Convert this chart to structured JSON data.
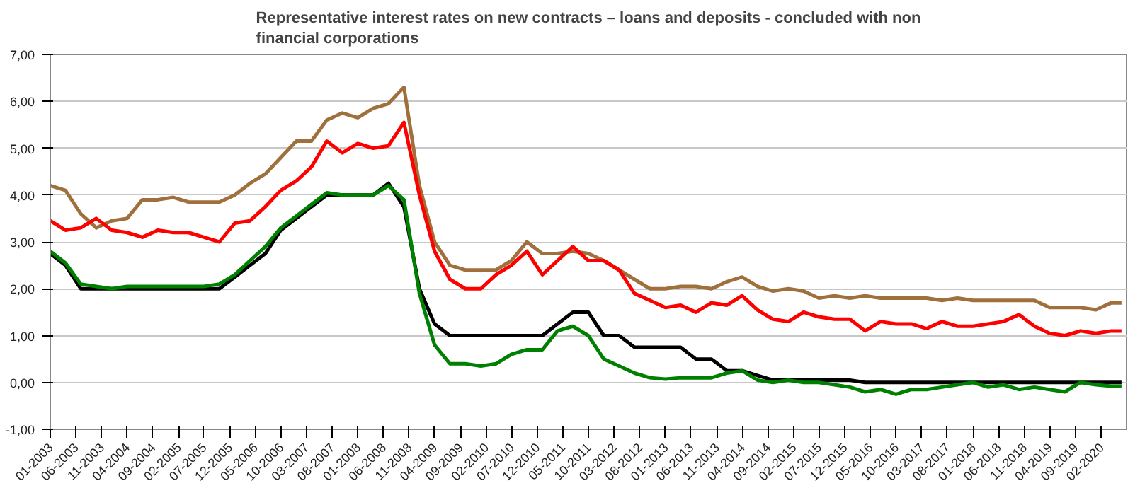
{
  "chart_data": {
    "type": "line",
    "title": "Representative interest rates on new contracts – loans and deposits - concluded with non financial corporations",
    "x": [
      "2003-01",
      "2003-04",
      "2003-07",
      "2003-10",
      "2004-01",
      "2004-04",
      "2004-07",
      "2004-10",
      "2005-01",
      "2005-04",
      "2005-07",
      "2005-10",
      "2006-01",
      "2006-04",
      "2006-07",
      "2006-10",
      "2007-01",
      "2007-04",
      "2007-07",
      "2007-10",
      "2008-01",
      "2008-04",
      "2008-07",
      "2008-10",
      "2009-01",
      "2009-04",
      "2009-07",
      "2009-10",
      "2010-01",
      "2010-04",
      "2010-07",
      "2010-10",
      "2011-01",
      "2011-04",
      "2011-07",
      "2011-10",
      "2012-01",
      "2012-04",
      "2012-07",
      "2012-10",
      "2013-01",
      "2013-04",
      "2013-07",
      "2013-10",
      "2014-01",
      "2014-04",
      "2014-07",
      "2014-10",
      "2015-01",
      "2015-04",
      "2015-07",
      "2015-10",
      "2016-01",
      "2016-04",
      "2016-07",
      "2016-10",
      "2017-01",
      "2017-04",
      "2017-07",
      "2017-10",
      "2018-01",
      "2018-04",
      "2018-07",
      "2018-10",
      "2019-01",
      "2019-04",
      "2019-07",
      "2019-10",
      "2020-01",
      "2020-04",
      "2020-06"
    ],
    "series": [
      {
        "color": "#a0703c",
        "values": [
          4.2,
          4.1,
          3.6,
          3.3,
          3.45,
          3.5,
          3.9,
          3.9,
          3.95,
          3.85,
          3.85,
          3.85,
          4.0,
          4.25,
          4.45,
          4.8,
          5.15,
          5.15,
          5.6,
          5.75,
          5.65,
          5.85,
          5.95,
          6.3,
          4.2,
          3.0,
          2.5,
          2.4,
          2.4,
          2.4,
          2.6,
          3.0,
          2.75,
          2.75,
          2.8,
          2.75,
          2.6,
          2.4,
          2.2,
          2.0,
          2.0,
          2.05,
          2.05,
          2.0,
          2.15,
          2.25,
          2.05,
          1.95,
          2.0,
          1.95,
          1.8,
          1.85,
          1.8,
          1.85,
          1.8,
          1.8,
          1.8,
          1.8,
          1.75,
          1.8,
          1.75,
          1.75,
          1.75,
          1.75,
          1.75,
          1.6,
          1.6,
          1.6,
          1.55,
          1.7,
          1.7
        ]
      },
      {
        "color": "#ff0000",
        "values": [
          3.45,
          3.25,
          3.3,
          3.5,
          3.25,
          3.2,
          3.1,
          3.25,
          3.2,
          3.2,
          3.1,
          3.0,
          3.4,
          3.45,
          3.75,
          4.1,
          4.3,
          4.6,
          5.15,
          4.9,
          5.1,
          5.0,
          5.05,
          5.55,
          4.0,
          2.8,
          2.2,
          2.0,
          2.0,
          2.3,
          2.5,
          2.8,
          2.3,
          2.6,
          2.9,
          2.6,
          2.6,
          2.4,
          1.9,
          1.75,
          1.6,
          1.65,
          1.5,
          1.7,
          1.65,
          1.85,
          1.55,
          1.35,
          1.3,
          1.5,
          1.4,
          1.35,
          1.35,
          1.1,
          1.3,
          1.25,
          1.25,
          1.15,
          1.3,
          1.2,
          1.2,
          1.25,
          1.3,
          1.45,
          1.2,
          1.05,
          1.0,
          1.1,
          1.05,
          1.1,
          1.1
        ]
      },
      {
        "color": "#000000",
        "values": [
          2.75,
          2.5,
          2.0,
          2.0,
          2.0,
          2.0,
          2.0,
          2.0,
          2.0,
          2.0,
          2.0,
          2.0,
          2.25,
          2.5,
          2.75,
          3.25,
          3.5,
          3.75,
          4.0,
          4.0,
          4.0,
          4.0,
          4.25,
          3.75,
          2.0,
          1.25,
          1.0,
          1.0,
          1.0,
          1.0,
          1.0,
          1.0,
          1.0,
          1.25,
          1.5,
          1.5,
          1.0,
          1.0,
          0.75,
          0.75,
          0.75,
          0.75,
          0.5,
          0.5,
          0.25,
          0.25,
          0.15,
          0.05,
          0.05,
          0.05,
          0.05,
          0.05,
          0.05,
          0.0,
          0.0,
          0.0,
          0.0,
          0.0,
          0.0,
          0.0,
          0.0,
          0.0,
          0.0,
          0.0,
          0.0,
          0.0,
          0.0,
          0.0,
          0.0,
          0.0,
          0.0
        ]
      },
      {
        "color": "#008000",
        "values": [
          2.8,
          2.55,
          2.1,
          2.05,
          2.0,
          2.05,
          2.05,
          2.05,
          2.05,
          2.05,
          2.05,
          2.1,
          2.3,
          2.6,
          2.9,
          3.3,
          3.55,
          3.8,
          4.05,
          4.0,
          4.0,
          4.0,
          4.2,
          3.9,
          1.9,
          0.8,
          0.4,
          0.4,
          0.35,
          0.4,
          0.6,
          0.7,
          0.7,
          1.1,
          1.2,
          1.0,
          0.5,
          0.35,
          0.2,
          0.1,
          0.07,
          0.1,
          0.1,
          0.1,
          0.2,
          0.25,
          0.05,
          0.0,
          0.05,
          0.0,
          0.0,
          -0.05,
          -0.1,
          -0.2,
          -0.15,
          -0.25,
          -0.15,
          -0.15,
          -0.1,
          -0.05,
          0.0,
          -0.1,
          -0.05,
          -0.15,
          -0.1,
          -0.15,
          -0.2,
          0.0,
          -0.05,
          -0.08,
          -0.08
        ]
      }
    ],
    "xlim": [
      "2003-01",
      "2020-07"
    ],
    "xticks": [
      {
        "value": "2003-01",
        "label": "01-2003"
      },
      {
        "value": "2003-06",
        "label": "06-2003"
      },
      {
        "value": "2003-11",
        "label": "11-2003"
      },
      {
        "value": "2004-04",
        "label": "04-2004"
      },
      {
        "value": "2004-09",
        "label": "09-2004"
      },
      {
        "value": "2005-02",
        "label": "02-2005"
      },
      {
        "value": "2005-07",
        "label": "07-2005"
      },
      {
        "value": "2005-12",
        "label": "12-2005"
      },
      {
        "value": "2006-05",
        "label": "05-2006"
      },
      {
        "value": "2006-10",
        "label": "10-2006"
      },
      {
        "value": "2007-03",
        "label": "03-2007"
      },
      {
        "value": "2007-08",
        "label": "08-2007"
      },
      {
        "value": "2008-01",
        "label": "01-2008"
      },
      {
        "value": "2008-06",
        "label": "06-2008"
      },
      {
        "value": "2008-11",
        "label": "11-2008"
      },
      {
        "value": "2009-04",
        "label": "04-2009"
      },
      {
        "value": "2009-09",
        "label": "09-2009"
      },
      {
        "value": "2010-02",
        "label": "02-2010"
      },
      {
        "value": "2010-07",
        "label": "07-2010"
      },
      {
        "value": "2010-12",
        "label": "12-2010"
      },
      {
        "value": "2011-05",
        "label": "05-2011"
      },
      {
        "value": "2011-10",
        "label": "10-2011"
      },
      {
        "value": "2012-03",
        "label": "03-2012"
      },
      {
        "value": "2012-08",
        "label": "08-2012"
      },
      {
        "value": "2013-01",
        "label": "01-2013"
      },
      {
        "value": "2013-06",
        "label": "06-2013"
      },
      {
        "value": "2013-11",
        "label": "11-2013"
      },
      {
        "value": "2014-04",
        "label": "04-2014"
      },
      {
        "value": "2014-09",
        "label": "09-2014"
      },
      {
        "value": "2015-02",
        "label": "02-2015"
      },
      {
        "value": "2015-07",
        "label": "07-2015"
      },
      {
        "value": "2015-12",
        "label": "12-2015"
      },
      {
        "value": "2016-05",
        "label": "05-2016"
      },
      {
        "value": "2016-10",
        "label": "10-2016"
      },
      {
        "value": "2017-03",
        "label": "03-2017"
      },
      {
        "value": "2017-08",
        "label": "08-2017"
      },
      {
        "value": "2018-01",
        "label": "01-2018"
      },
      {
        "value": "2018-06",
        "label": "06-2018"
      },
      {
        "value": "2018-11",
        "label": "11-2018"
      },
      {
        "value": "2019-04",
        "label": "04-2019"
      },
      {
        "value": "2019-09",
        "label": "09-2019"
      },
      {
        "value": "2020-02",
        "label": "02-2020"
      }
    ],
    "ylim": [
      -1,
      7
    ],
    "yticks": [
      {
        "value": -1,
        "label": "-1,00"
      },
      {
        "value": 0,
        "label": "0,00"
      },
      {
        "value": 1,
        "label": "1,00"
      },
      {
        "value": 2,
        "label": "2,00"
      },
      {
        "value": 3,
        "label": "3,00"
      },
      {
        "value": 4,
        "label": "4,00"
      },
      {
        "value": 5,
        "label": "5,00"
      },
      {
        "value": 6,
        "label": "6,00"
      },
      {
        "value": 7,
        "label": "7,00"
      }
    ],
    "grid": "y",
    "marker": "none",
    "line_style": "solid"
  }
}
